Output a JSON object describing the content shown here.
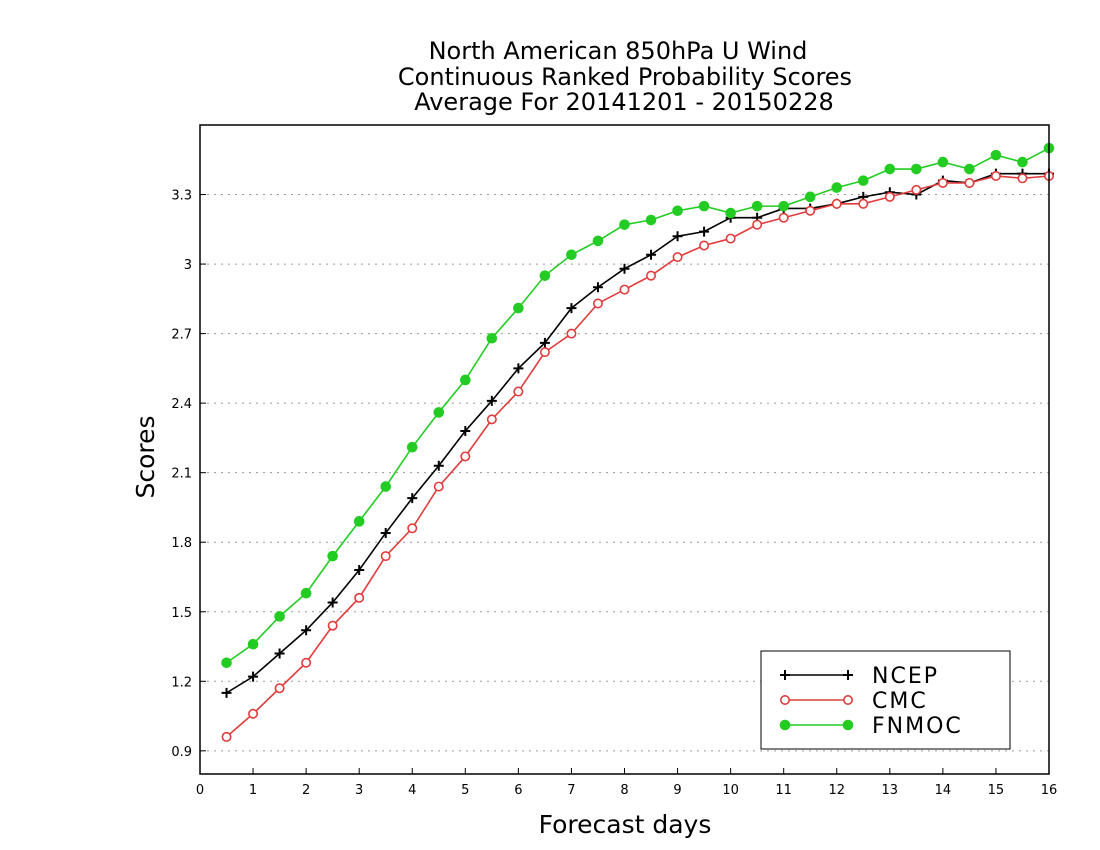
{
  "chart_data": {
    "type": "line",
    "title": [
      "North American 850hPa U Wind",
      "Continuous Ranked Probability Scores",
      "Average For 20141201 - 20150228"
    ],
    "xlabel": "Forecast days",
    "ylabel": "Scores",
    "xlim": [
      0,
      16
    ],
    "ylim": [
      0.8,
      3.6
    ],
    "xticks": [
      0,
      1,
      2,
      3,
      4,
      5,
      6,
      7,
      8,
      9,
      10,
      11,
      12,
      13,
      14,
      15,
      16
    ],
    "xtick_labels": [
      "0",
      "1",
      "2",
      "3",
      "4",
      "5",
      "6",
      "7",
      "8",
      "9",
      "10",
      "11",
      "12",
      "13",
      "14",
      "15",
      "16"
    ],
    "yticks": [
      0.9,
      1.2,
      1.5,
      1.8,
      2.1,
      2.4,
      2.7,
      3.0,
      3.3
    ],
    "ytick_labels": [
      "0.9",
      "1.2",
      "1.5",
      "1.8",
      "2.1",
      "2.4",
      "2.7",
      "3",
      "3.3"
    ],
    "grid": "horizontal dotted",
    "legend_position": "bottom-right",
    "x": [
      0.5,
      1,
      1.5,
      2,
      2.5,
      3,
      3.5,
      4,
      4.5,
      5,
      5.5,
      6,
      6.5,
      7,
      7.5,
      8,
      8.5,
      9,
      9.5,
      10,
      10.5,
      11,
      11.5,
      12,
      12.5,
      13,
      13.5,
      14,
      14.5,
      15,
      15.5,
      16
    ],
    "series": [
      {
        "name": "NCEP",
        "color": "#000000",
        "marker": "plus",
        "values": [
          1.15,
          1.22,
          1.32,
          1.42,
          1.54,
          1.68,
          1.84,
          1.99,
          2.13,
          2.28,
          2.41,
          2.55,
          2.66,
          2.81,
          2.9,
          2.98,
          3.04,
          3.12,
          3.14,
          3.2,
          3.2,
          3.24,
          3.24,
          3.26,
          3.29,
          3.31,
          3.3,
          3.36,
          3.35,
          3.39,
          3.39,
          3.39
        ]
      },
      {
        "name": "CMC",
        "color": "#e03c3c",
        "marker": "open-circle",
        "values": [
          0.96,
          1.06,
          1.17,
          1.28,
          1.44,
          1.56,
          1.74,
          1.86,
          2.04,
          2.17,
          2.33,
          2.45,
          2.62,
          2.7,
          2.83,
          2.89,
          2.95,
          3.03,
          3.08,
          3.11,
          3.17,
          3.2,
          3.23,
          3.26,
          3.26,
          3.29,
          3.32,
          3.35,
          3.35,
          3.38,
          3.37,
          3.38
        ]
      },
      {
        "name": "FNMOC",
        "color": "#22cc22",
        "marker": "filled-circle",
        "values": [
          1.28,
          1.36,
          1.48,
          1.58,
          1.74,
          1.89,
          2.04,
          2.21,
          2.36,
          2.5,
          2.68,
          2.81,
          2.95,
          3.04,
          3.1,
          3.17,
          3.19,
          3.23,
          3.25,
          3.22,
          3.25,
          3.25,
          3.29,
          3.33,
          3.36,
          3.41,
          3.41,
          3.44,
          3.41,
          3.47,
          3.44,
          3.5
        ]
      }
    ]
  }
}
